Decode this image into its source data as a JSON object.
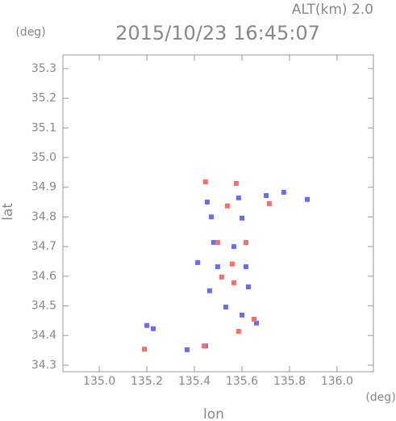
{
  "chart_data": {
    "type": "scatter",
    "title": "2015/10/23 16:45:07",
    "annotation": "ALT(km) 2.0",
    "xlabel": "lon",
    "ylabel": "lat",
    "xunit": "(deg)",
    "yunit": "(deg)",
    "xlim": [
      134.847,
      136.153
    ],
    "ylim": [
      34.278,
      35.346
    ],
    "xticks": [
      {
        "value": 135.0,
        "label": "135.0"
      },
      135.2,
      135.4,
      135.6,
      135.8,
      {
        "value": 136.0,
        "label": "136.0"
      }
    ],
    "yticks": [
      34.3,
      34.4,
      34.5,
      34.6,
      34.7,
      34.8,
      34.9,
      {
        "value": 35.0,
        "label": "35.0"
      },
      35.1,
      35.2,
      35.3
    ],
    "series": [
      {
        "color": "#6a6aff",
        "x": [
          135.2,
          135.227,
          135.454,
          135.471,
          135.586,
          135.702,
          135.776,
          135.875,
          135.566,
          135.498,
          135.617,
          135.464,
          135.532,
          135.6,
          135.369,
          135.447,
          135.661,
          135.414,
          135.627,
          135.481,
          135.6
        ],
        "values": [
          34.434,
          34.423,
          34.85,
          34.8,
          34.864,
          34.872,
          34.883,
          34.859,
          34.7,
          34.632,
          34.632,
          34.551,
          34.496,
          34.469,
          34.352,
          34.365,
          34.442,
          34.646,
          34.564,
          34.714,
          34.796
        ]
      },
      {
        "color": "#ff6a6a",
        "x": [
          135.19,
          135.586,
          135.559,
          135.515,
          135.441,
          135.715,
          135.539,
          135.576,
          135.447,
          135.651,
          135.566,
          135.498,
          135.617
        ],
        "values": [
          34.354,
          34.414,
          34.641,
          34.597,
          34.365,
          34.845,
          34.837,
          34.913,
          34.918,
          34.455,
          34.578,
          34.714,
          34.714
        ]
      }
    ]
  }
}
